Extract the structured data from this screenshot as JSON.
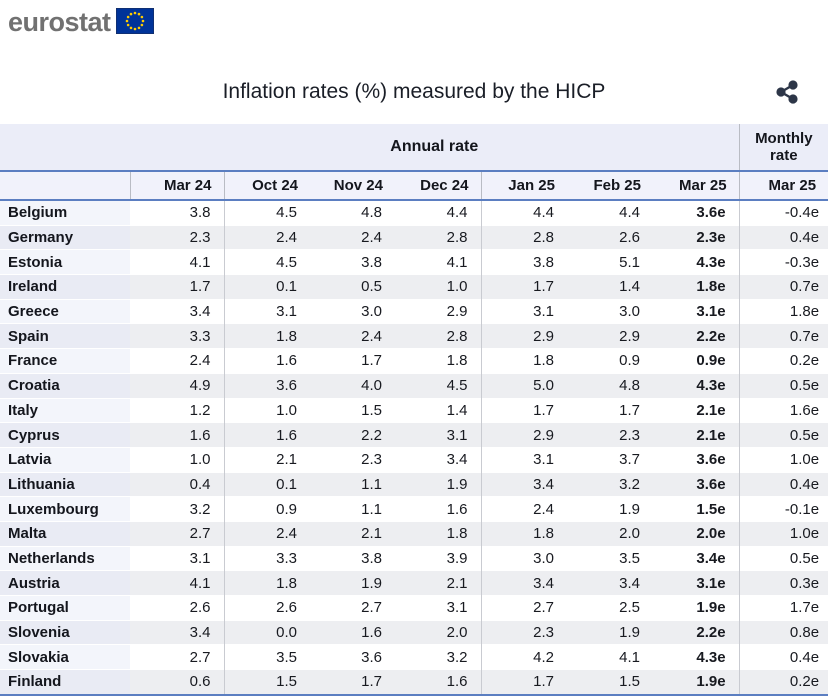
{
  "logo": {
    "text": "eurostat"
  },
  "header": {
    "title": "Inflation rates (%) measured by the HICP"
  },
  "table": {
    "group_headers": {
      "annual": "Annual rate",
      "monthly": "Monthly\nrate"
    },
    "columns": [
      "Mar 24",
      "Oct 24",
      "Nov 24",
      "Dec 24",
      "Jan 25",
      "Feb 25",
      "Mar 25"
    ],
    "monthly_column": "Mar 25",
    "rows": [
      {
        "country": "Belgium",
        "values": [
          "3.8",
          "4.5",
          "4.8",
          "4.4",
          "4.4",
          "4.4",
          "3.6e"
        ],
        "monthly": "-0.4e"
      },
      {
        "country": "Germany",
        "values": [
          "2.3",
          "2.4",
          "2.4",
          "2.8",
          "2.8",
          "2.6",
          "2.3e"
        ],
        "monthly": "0.4e"
      },
      {
        "country": "Estonia",
        "values": [
          "4.1",
          "4.5",
          "3.8",
          "4.1",
          "3.8",
          "5.1",
          "4.3e"
        ],
        "monthly": "-0.3e"
      },
      {
        "country": "Ireland",
        "values": [
          "1.7",
          "0.1",
          "0.5",
          "1.0",
          "1.7",
          "1.4",
          "1.8e"
        ],
        "monthly": "0.7e"
      },
      {
        "country": "Greece",
        "values": [
          "3.4",
          "3.1",
          "3.0",
          "2.9",
          "3.1",
          "3.0",
          "3.1e"
        ],
        "monthly": "1.8e"
      },
      {
        "country": "Spain",
        "values": [
          "3.3",
          "1.8",
          "2.4",
          "2.8",
          "2.9",
          "2.9",
          "2.2e"
        ],
        "monthly": "0.7e"
      },
      {
        "country": "France",
        "values": [
          "2.4",
          "1.6",
          "1.7",
          "1.8",
          "1.8",
          "0.9",
          "0.9e"
        ],
        "monthly": "0.2e"
      },
      {
        "country": "Croatia",
        "values": [
          "4.9",
          "3.6",
          "4.0",
          "4.5",
          "5.0",
          "4.8",
          "4.3e"
        ],
        "monthly": "0.5e"
      },
      {
        "country": "Italy",
        "values": [
          "1.2",
          "1.0",
          "1.5",
          "1.4",
          "1.7",
          "1.7",
          "2.1e"
        ],
        "monthly": "1.6e"
      },
      {
        "country": "Cyprus",
        "values": [
          "1.6",
          "1.6",
          "2.2",
          "3.1",
          "2.9",
          "2.3",
          "2.1e"
        ],
        "monthly": "0.5e"
      },
      {
        "country": "Latvia",
        "values": [
          "1.0",
          "2.1",
          "2.3",
          "3.4",
          "3.1",
          "3.7",
          "3.6e"
        ],
        "monthly": "1.0e"
      },
      {
        "country": "Lithuania",
        "values": [
          "0.4",
          "0.1",
          "1.1",
          "1.9",
          "3.4",
          "3.2",
          "3.6e"
        ],
        "monthly": "0.4e"
      },
      {
        "country": "Luxembourg",
        "values": [
          "3.2",
          "0.9",
          "1.1",
          "1.6",
          "2.4",
          "1.9",
          "1.5e"
        ],
        "monthly": "-0.1e"
      },
      {
        "country": "Malta",
        "values": [
          "2.7",
          "2.4",
          "2.1",
          "1.8",
          "1.8",
          "2.0",
          "2.0e"
        ],
        "monthly": "1.0e"
      },
      {
        "country": "Netherlands",
        "values": [
          "3.1",
          "3.3",
          "3.8",
          "3.9",
          "3.0",
          "3.5",
          "3.4e"
        ],
        "monthly": "0.5e"
      },
      {
        "country": "Austria",
        "values": [
          "4.1",
          "1.8",
          "1.9",
          "2.1",
          "3.4",
          "3.4",
          "3.1e"
        ],
        "monthly": "0.3e"
      },
      {
        "country": "Portugal",
        "values": [
          "2.6",
          "2.6",
          "2.7",
          "3.1",
          "2.7",
          "2.5",
          "1.9e"
        ],
        "monthly": "1.7e"
      },
      {
        "country": "Slovenia",
        "values": [
          "3.4",
          "0.0",
          "1.6",
          "2.0",
          "2.3",
          "1.9",
          "2.2e"
        ],
        "monthly": "0.8e"
      },
      {
        "country": "Slovakia",
        "values": [
          "2.7",
          "3.5",
          "3.6",
          "3.2",
          "4.2",
          "4.1",
          "4.3e"
        ],
        "monthly": "0.4e"
      },
      {
        "country": "Finland",
        "values": [
          "0.6",
          "1.5",
          "1.7",
          "1.6",
          "1.7",
          "1.5",
          "1.9e"
        ],
        "monthly": "0.2e"
      }
    ]
  },
  "colors": {
    "accent_blue_line": "#5b7ec1",
    "header_bg": "#ebedf8",
    "month_row_bg": "#f1f2fb",
    "even_row_bg": "#edeef1",
    "country_cell_odd_bg": "#f3f5fb",
    "country_cell_even_bg": "#e9ebf4",
    "logo_gray": "#717171",
    "eu_flag_blue": "#003399",
    "eu_star_yellow": "#ffcc00",
    "icon_dark": "#2d3648"
  }
}
